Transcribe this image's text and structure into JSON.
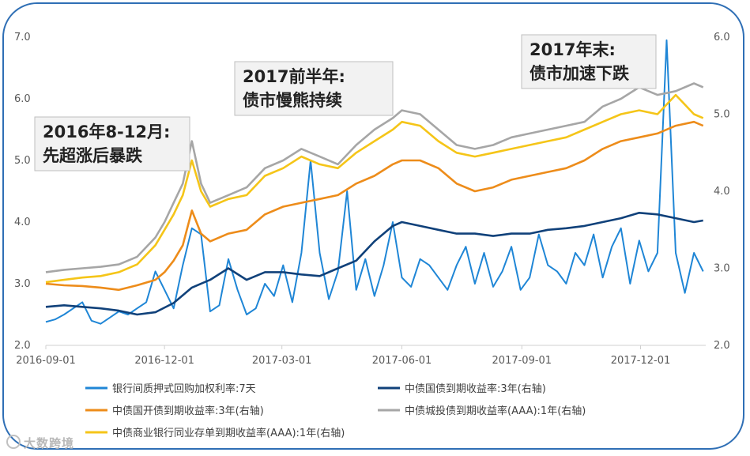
{
  "chart_data": {
    "type": "line",
    "title": "",
    "xlabel": "",
    "ylabel": "",
    "x_range": [
      "2016-09-01",
      "2018-01-20"
    ],
    "x_ticks": [
      "2016-09-01",
      "2016-12-01",
      "2017-03-01",
      "2017-06-01",
      "2017-09-01",
      "2017-12-01"
    ],
    "ylim_left": [
      2.0,
      7.0
    ],
    "ylim_right": [
      2.0,
      6.0
    ],
    "y_ticks_left": [
      "2.0",
      "3.0",
      "4.0",
      "5.0",
      "6.0",
      "7.0"
    ],
    "y_ticks_right": [
      "2.0",
      "3.0",
      "4.0",
      "5.0",
      "6.0"
    ],
    "grid": false,
    "legend_position": "bottom",
    "colors": {
      "repo": "#1f86d6",
      "gov": "#10417a",
      "cdb": "#ed8c1a",
      "ucb": "#a6a6a6",
      "ncd": "#f5c518"
    },
    "series": [
      {
        "id": "repo",
        "name": "银行间质押式回购加权利率:7天",
        "axis": "left",
        "points": [
          [
            "2016-09-01",
            2.38
          ],
          [
            "2016-09-08",
            2.42
          ],
          [
            "2016-09-15",
            2.5
          ],
          [
            "2016-09-22",
            2.6
          ],
          [
            "2016-09-29",
            2.7
          ],
          [
            "2016-10-06",
            2.4
          ],
          [
            "2016-10-13",
            2.35
          ],
          [
            "2016-10-20",
            2.45
          ],
          [
            "2016-10-27",
            2.55
          ],
          [
            "2016-11-03",
            2.5
          ],
          [
            "2016-11-10",
            2.6
          ],
          [
            "2016-11-17",
            2.7
          ],
          [
            "2016-11-24",
            3.2
          ],
          [
            "2016-12-01",
            2.9
          ],
          [
            "2016-12-08",
            2.6
          ],
          [
            "2016-12-15",
            3.3
          ],
          [
            "2016-12-22",
            3.9
          ],
          [
            "2016-12-29",
            3.8
          ],
          [
            "2017-01-05",
            2.55
          ],
          [
            "2017-01-12",
            2.65
          ],
          [
            "2017-01-19",
            3.4
          ],
          [
            "2017-01-26",
            2.9
          ],
          [
            "2017-02-02",
            2.5
          ],
          [
            "2017-02-09",
            2.6
          ],
          [
            "2017-02-16",
            3.0
          ],
          [
            "2017-02-23",
            2.8
          ],
          [
            "2017-03-02",
            3.3
          ],
          [
            "2017-03-09",
            2.7
          ],
          [
            "2017-03-16",
            3.5
          ],
          [
            "2017-03-23",
            5.0
          ],
          [
            "2017-03-30",
            3.5
          ],
          [
            "2017-04-06",
            2.75
          ],
          [
            "2017-04-13",
            3.2
          ],
          [
            "2017-04-20",
            4.5
          ],
          [
            "2017-04-27",
            2.9
          ],
          [
            "2017-05-04",
            3.4
          ],
          [
            "2017-05-11",
            2.8
          ],
          [
            "2017-05-18",
            3.3
          ],
          [
            "2017-05-25",
            4.0
          ],
          [
            "2017-06-01",
            3.1
          ],
          [
            "2017-06-08",
            2.95
          ],
          [
            "2017-06-15",
            3.4
          ],
          [
            "2017-06-22",
            3.3
          ],
          [
            "2017-06-29",
            3.1
          ],
          [
            "2017-07-06",
            2.9
          ],
          [
            "2017-07-13",
            3.3
          ],
          [
            "2017-07-20",
            3.6
          ],
          [
            "2017-07-27",
            3.0
          ],
          [
            "2017-08-03",
            3.5
          ],
          [
            "2017-08-10",
            2.95
          ],
          [
            "2017-08-17",
            3.2
          ],
          [
            "2017-08-24",
            3.6
          ],
          [
            "2017-08-31",
            2.9
          ],
          [
            "2017-09-07",
            3.1
          ],
          [
            "2017-09-14",
            3.8
          ],
          [
            "2017-09-21",
            3.3
          ],
          [
            "2017-09-28",
            3.2
          ],
          [
            "2017-10-05",
            3.0
          ],
          [
            "2017-10-12",
            3.5
          ],
          [
            "2017-10-19",
            3.3
          ],
          [
            "2017-10-26",
            3.8
          ],
          [
            "2017-11-02",
            3.1
          ],
          [
            "2017-11-09",
            3.6
          ],
          [
            "2017-11-16",
            3.9
          ],
          [
            "2017-11-23",
            3.0
          ],
          [
            "2017-11-30",
            3.7
          ],
          [
            "2017-12-07",
            3.2
          ],
          [
            "2017-12-14",
            3.5
          ],
          [
            "2017-12-21",
            6.95
          ],
          [
            "2017-12-28",
            3.5
          ],
          [
            "2018-01-04",
            2.85
          ],
          [
            "2018-01-11",
            3.5
          ],
          [
            "2018-01-18",
            3.2
          ]
        ]
      },
      {
        "id": "gov",
        "name": "中债国债到期收益率:3年(右轴)",
        "axis": "right",
        "points": [
          [
            "2016-09-01",
            2.5
          ],
          [
            "2016-09-15",
            2.52
          ],
          [
            "2016-09-29",
            2.5
          ],
          [
            "2016-10-13",
            2.48
          ],
          [
            "2016-10-27",
            2.45
          ],
          [
            "2016-11-10",
            2.4
          ],
          [
            "2016-11-24",
            2.43
          ],
          [
            "2016-12-08",
            2.55
          ],
          [
            "2016-12-22",
            2.75
          ],
          [
            "2017-01-05",
            2.85
          ],
          [
            "2017-01-19",
            3.0
          ],
          [
            "2017-02-02",
            2.85
          ],
          [
            "2017-02-16",
            2.95
          ],
          [
            "2017-03-02",
            2.95
          ],
          [
            "2017-03-16",
            2.92
          ],
          [
            "2017-03-30",
            2.9
          ],
          [
            "2017-04-13",
            3.0
          ],
          [
            "2017-04-27",
            3.1
          ],
          [
            "2017-05-11",
            3.35
          ],
          [
            "2017-05-25",
            3.55
          ],
          [
            "2017-06-01",
            3.6
          ],
          [
            "2017-06-15",
            3.55
          ],
          [
            "2017-06-29",
            3.5
          ],
          [
            "2017-07-13",
            3.45
          ],
          [
            "2017-07-27",
            3.45
          ],
          [
            "2017-08-10",
            3.42
          ],
          [
            "2017-08-24",
            3.45
          ],
          [
            "2017-09-07",
            3.45
          ],
          [
            "2017-09-21",
            3.5
          ],
          [
            "2017-10-05",
            3.52
          ],
          [
            "2017-10-19",
            3.55
          ],
          [
            "2017-11-02",
            3.6
          ],
          [
            "2017-11-16",
            3.65
          ],
          [
            "2017-11-30",
            3.72
          ],
          [
            "2017-12-14",
            3.7
          ],
          [
            "2017-12-28",
            3.65
          ],
          [
            "2018-01-11",
            3.6
          ],
          [
            "2018-01-18",
            3.62
          ]
        ]
      },
      {
        "id": "cdb",
        "name": "中债国开债到期收益率:3年(右轴)",
        "axis": "right",
        "points": [
          [
            "2016-09-01",
            2.8
          ],
          [
            "2016-09-15",
            2.78
          ],
          [
            "2016-09-29",
            2.77
          ],
          [
            "2016-10-13",
            2.75
          ],
          [
            "2016-10-27",
            2.72
          ],
          [
            "2016-11-10",
            2.78
          ],
          [
            "2016-11-24",
            2.85
          ],
          [
            "2016-12-01",
            2.95
          ],
          [
            "2016-12-08",
            3.1
          ],
          [
            "2016-12-15",
            3.3
          ],
          [
            "2016-12-22",
            3.75
          ],
          [
            "2016-12-29",
            3.45
          ],
          [
            "2017-01-05",
            3.35
          ],
          [
            "2017-01-19",
            3.45
          ],
          [
            "2017-02-02",
            3.5
          ],
          [
            "2017-02-16",
            3.7
          ],
          [
            "2017-03-02",
            3.8
          ],
          [
            "2017-03-16",
            3.85
          ],
          [
            "2017-03-30",
            3.9
          ],
          [
            "2017-04-13",
            3.95
          ],
          [
            "2017-04-27",
            4.1
          ],
          [
            "2017-05-11",
            4.2
          ],
          [
            "2017-05-25",
            4.35
          ],
          [
            "2017-06-01",
            4.4
          ],
          [
            "2017-06-15",
            4.4
          ],
          [
            "2017-06-29",
            4.3
          ],
          [
            "2017-07-13",
            4.1
          ],
          [
            "2017-07-27",
            4.0
          ],
          [
            "2017-08-10",
            4.05
          ],
          [
            "2017-08-24",
            4.15
          ],
          [
            "2017-09-07",
            4.2
          ],
          [
            "2017-09-21",
            4.25
          ],
          [
            "2017-10-05",
            4.3
          ],
          [
            "2017-10-19",
            4.4
          ],
          [
            "2017-11-02",
            4.55
          ],
          [
            "2017-11-16",
            4.65
          ],
          [
            "2017-11-30",
            4.7
          ],
          [
            "2017-12-14",
            4.75
          ],
          [
            "2017-12-28",
            4.85
          ],
          [
            "2018-01-11",
            4.9
          ],
          [
            "2018-01-18",
            4.85
          ]
        ]
      },
      {
        "id": "ucb",
        "name": "中债城投债到期收益率(AAA):1年(右轴)",
        "axis": "right",
        "points": [
          [
            "2016-09-01",
            2.95
          ],
          [
            "2016-09-15",
            2.98
          ],
          [
            "2016-09-29",
            3.0
          ],
          [
            "2016-10-13",
            3.02
          ],
          [
            "2016-10-27",
            3.05
          ],
          [
            "2016-11-10",
            3.15
          ],
          [
            "2016-11-24",
            3.4
          ],
          [
            "2016-12-01",
            3.6
          ],
          [
            "2016-12-08",
            3.85
          ],
          [
            "2016-12-15",
            4.1
          ],
          [
            "2016-12-22",
            4.65
          ],
          [
            "2016-12-29",
            4.1
          ],
          [
            "2017-01-05",
            3.85
          ],
          [
            "2017-01-19",
            3.95
          ],
          [
            "2017-02-02",
            4.05
          ],
          [
            "2017-02-16",
            4.3
          ],
          [
            "2017-03-02",
            4.4
          ],
          [
            "2017-03-16",
            4.55
          ],
          [
            "2017-03-30",
            4.45
          ],
          [
            "2017-04-13",
            4.35
          ],
          [
            "2017-04-27",
            4.6
          ],
          [
            "2017-05-11",
            4.8
          ],
          [
            "2017-05-25",
            4.95
          ],
          [
            "2017-06-01",
            5.05
          ],
          [
            "2017-06-15",
            5.0
          ],
          [
            "2017-06-29",
            4.8
          ],
          [
            "2017-07-13",
            4.6
          ],
          [
            "2017-07-27",
            4.55
          ],
          [
            "2017-08-10",
            4.6
          ],
          [
            "2017-08-24",
            4.7
          ],
          [
            "2017-09-07",
            4.75
          ],
          [
            "2017-09-21",
            4.8
          ],
          [
            "2017-10-05",
            4.85
          ],
          [
            "2017-10-19",
            4.9
          ],
          [
            "2017-11-02",
            5.1
          ],
          [
            "2017-11-16",
            5.2
          ],
          [
            "2017-11-30",
            5.35
          ],
          [
            "2017-12-14",
            5.25
          ],
          [
            "2017-12-28",
            5.3
          ],
          [
            "2018-01-11",
            5.4
          ],
          [
            "2018-01-18",
            5.35
          ]
        ]
      },
      {
        "id": "ncd",
        "name": "中债商业银行同业存单到期收益率(AAA):1年(右轴)",
        "axis": "right",
        "points": [
          [
            "2016-09-01",
            2.82
          ],
          [
            "2016-09-15",
            2.85
          ],
          [
            "2016-09-29",
            2.88
          ],
          [
            "2016-10-13",
            2.9
          ],
          [
            "2016-10-27",
            2.95
          ],
          [
            "2016-11-10",
            3.05
          ],
          [
            "2016-11-24",
            3.3
          ],
          [
            "2016-12-01",
            3.5
          ],
          [
            "2016-12-08",
            3.7
          ],
          [
            "2016-12-15",
            3.95
          ],
          [
            "2016-12-22",
            4.4
          ],
          [
            "2016-12-29",
            4.0
          ],
          [
            "2017-01-05",
            3.8
          ],
          [
            "2017-01-19",
            3.9
          ],
          [
            "2017-02-02",
            3.95
          ],
          [
            "2017-02-16",
            4.2
          ],
          [
            "2017-03-02",
            4.3
          ],
          [
            "2017-03-16",
            4.45
          ],
          [
            "2017-03-30",
            4.35
          ],
          [
            "2017-04-13",
            4.3
          ],
          [
            "2017-04-27",
            4.5
          ],
          [
            "2017-05-11",
            4.65
          ],
          [
            "2017-05-25",
            4.8
          ],
          [
            "2017-06-01",
            4.9
          ],
          [
            "2017-06-15",
            4.85
          ],
          [
            "2017-06-29",
            4.65
          ],
          [
            "2017-07-13",
            4.5
          ],
          [
            "2017-07-27",
            4.45
          ],
          [
            "2017-08-10",
            4.5
          ],
          [
            "2017-08-24",
            4.55
          ],
          [
            "2017-09-07",
            4.6
          ],
          [
            "2017-09-21",
            4.65
          ],
          [
            "2017-10-05",
            4.7
          ],
          [
            "2017-10-19",
            4.8
          ],
          [
            "2017-11-02",
            4.9
          ],
          [
            "2017-11-16",
            5.0
          ],
          [
            "2017-11-30",
            5.05
          ],
          [
            "2017-12-14",
            5.0
          ],
          [
            "2017-12-28",
            5.25
          ],
          [
            "2018-01-11",
            5.0
          ],
          [
            "2018-01-18",
            4.95
          ]
        ]
      }
    ],
    "annotations": [
      {
        "id": "a1",
        "lines": [
          "2016年8-12月:",
          "先超涨后暴跌"
        ]
      },
      {
        "id": "a2",
        "lines": [
          "2017前半年:",
          "债市慢熊持续"
        ]
      },
      {
        "id": "a3",
        "lines": [
          "2017年末:",
          "债市加速下跌"
        ]
      }
    ]
  },
  "watermark": "大数跨境"
}
